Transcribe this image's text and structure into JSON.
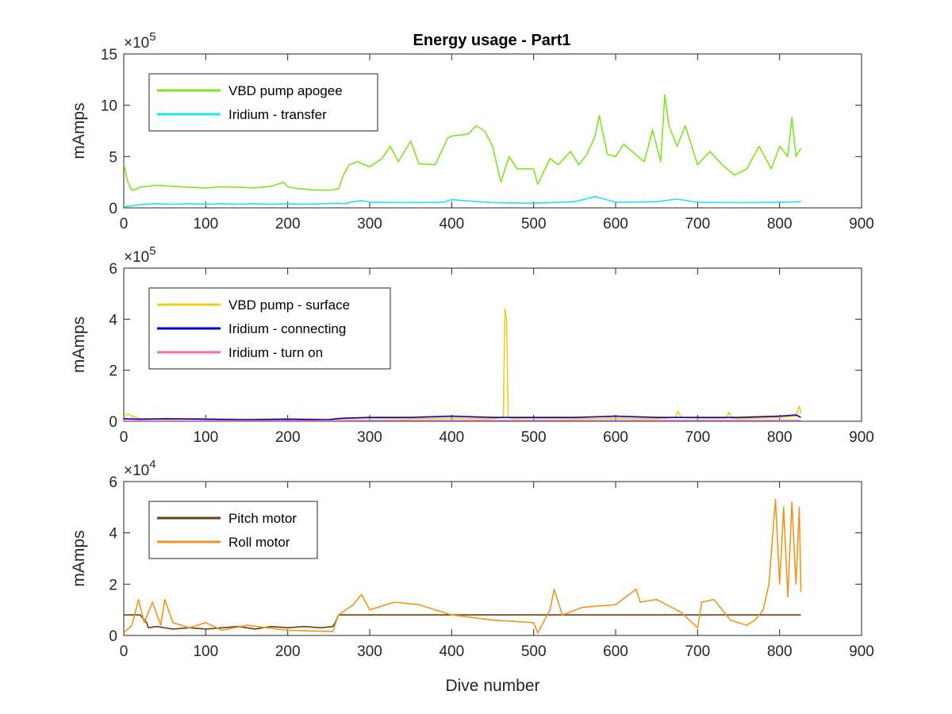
{
  "figure": {
    "title": "Energy usage - Part1"
  },
  "chart_data": [
    {
      "type": "line",
      "title": "Energy usage - Part1",
      "xlabel": "",
      "ylabel": "mAmps",
      "xlim": [
        0,
        900
      ],
      "ylim": [
        0,
        1500000
      ],
      "xticks": [
        "0",
        "100",
        "200",
        "300",
        "400",
        "500",
        "600",
        "700",
        "800",
        "900"
      ],
      "yticks": [
        "0",
        "5",
        "10",
        "15"
      ],
      "exponent_label": "× 10^5",
      "exponent_base": "×10",
      "exponent_power": "5",
      "grid": false,
      "legend_position": "top-left",
      "series": [
        {
          "name": "VBD pump apogee",
          "color": "#7fe51e",
          "x": [
            0,
            5,
            10,
            20,
            40,
            60,
            80,
            100,
            120,
            140,
            160,
            180,
            195,
            200,
            210,
            230,
            250,
            262,
            268,
            275,
            285,
            300,
            315,
            325,
            335,
            350,
            360,
            380,
            395,
            400,
            420,
            430,
            440,
            450,
            460,
            470,
            480,
            500,
            505,
            520,
            530,
            545,
            555,
            565,
            575,
            580,
            590,
            600,
            610,
            620,
            635,
            645,
            655,
            660,
            665,
            675,
            685,
            700,
            715,
            730,
            745,
            760,
            775,
            790,
            800,
            810,
            815,
            820,
            826
          ],
          "y": [
            430000,
            250000,
            170000,
            200000,
            220000,
            210000,
            200000,
            195000,
            205000,
            200000,
            195000,
            210000,
            250000,
            205000,
            190000,
            175000,
            170000,
            185000,
            320000,
            420000,
            450000,
            400000,
            480000,
            600000,
            450000,
            650000,
            430000,
            420000,
            680000,
            700000,
            720000,
            800000,
            750000,
            600000,
            250000,
            500000,
            380000,
            380000,
            230000,
            480000,
            420000,
            550000,
            420000,
            520000,
            700000,
            900000,
            520000,
            500000,
            620000,
            550000,
            450000,
            760000,
            450000,
            1100000,
            800000,
            600000,
            800000,
            420000,
            550000,
            420000,
            320000,
            380000,
            600000,
            380000,
            600000,
            500000,
            880000,
            500000,
            580000
          ]
        },
        {
          "name": "Iridium - transfer",
          "color": "#1ee5f0",
          "x": [
            0,
            10,
            20,
            40,
            60,
            80,
            100,
            120,
            140,
            160,
            180,
            200,
            220,
            240,
            262,
            270,
            280,
            290,
            300,
            350,
            390,
            400,
            450,
            500,
            550,
            575,
            600,
            650,
            675,
            700,
            750,
            800,
            826
          ],
          "y": [
            10000,
            20000,
            30000,
            40000,
            35000,
            40000,
            35000,
            40000,
            35000,
            40000,
            35000,
            40000,
            35000,
            40000,
            45000,
            40000,
            60000,
            70000,
            55000,
            50000,
            55000,
            80000,
            50000,
            45000,
            60000,
            110000,
            55000,
            60000,
            85000,
            55000,
            50000,
            55000,
            60000
          ]
        }
      ]
    },
    {
      "type": "line",
      "title": "",
      "xlabel": "",
      "ylabel": "mAmps",
      "xlim": [
        0,
        900
      ],
      "ylim": [
        0,
        600000
      ],
      "xticks": [
        "0",
        "100",
        "200",
        "300",
        "400",
        "500",
        "600",
        "700",
        "800",
        "900"
      ],
      "yticks": [
        "0",
        "2",
        "4",
        "6"
      ],
      "exponent_label": "× 10^5",
      "exponent_base": "×10",
      "exponent_power": "5",
      "grid": false,
      "legend_position": "top-left",
      "series": [
        {
          "name": "VBD pump - surface",
          "color": "#f0cc1e",
          "x": [
            0,
            5,
            10,
            20,
            50,
            100,
            150,
            200,
            250,
            300,
            350,
            400,
            450,
            463,
            465,
            467,
            469,
            475,
            500,
            550,
            600,
            650,
            673,
            676,
            680,
            700,
            735,
            738,
            742,
            750,
            800,
            820,
            824,
            826
          ],
          "y": [
            15000,
            30000,
            20000,
            10000,
            8000,
            10000,
            8000,
            10000,
            8000,
            12000,
            10000,
            12000,
            10000,
            15000,
            440000,
            400000,
            15000,
            10000,
            12000,
            10000,
            12000,
            10000,
            15000,
            40000,
            15000,
            12000,
            12000,
            35000,
            12000,
            10000,
            15000,
            20000,
            60000,
            30000
          ]
        },
        {
          "name": "Iridium - connecting",
          "color": "#0000cc",
          "x": [
            0,
            20,
            50,
            100,
            150,
            200,
            250,
            260,
            270,
            300,
            350,
            400,
            450,
            500,
            550,
            600,
            650,
            700,
            750,
            800,
            820,
            826
          ],
          "y": [
            10000,
            8000,
            10000,
            8000,
            6000,
            8000,
            6000,
            10000,
            12000,
            15000,
            15000,
            20000,
            15000,
            15000,
            15000,
            20000,
            15000,
            15000,
            15000,
            20000,
            25000,
            15000
          ]
        },
        {
          "name": "Iridium - turn on",
          "color": "#f06eb4",
          "x": [
            0,
            100,
            200,
            300,
            400,
            500,
            600,
            700,
            800,
            826
          ],
          "y": [
            2000,
            2000,
            2000,
            3000,
            3000,
            3000,
            3000,
            3000,
            3000,
            3000
          ]
        }
      ]
    },
    {
      "type": "line",
      "title": "",
      "xlabel": "Dive number",
      "ylabel": "mAmps",
      "xlim": [
        0,
        900
      ],
      "ylim": [
        0,
        60000
      ],
      "xticks": [
        "0",
        "100",
        "200",
        "300",
        "400",
        "500",
        "600",
        "700",
        "800",
        "900"
      ],
      "yticks": [
        "0",
        "2",
        "4",
        "6"
      ],
      "exponent_label": "× 10^4",
      "exponent_base": "×10",
      "exponent_power": "4",
      "grid": false,
      "legend_position": "top-left",
      "series": [
        {
          "name": "Pitch motor",
          "color": "#703c0e",
          "x": [
            0,
            20,
            28,
            30,
            40,
            60,
            80,
            100,
            120,
            140,
            160,
            180,
            200,
            220,
            240,
            255,
            258,
            262,
            300,
            400,
            500,
            600,
            700,
            800,
            826
          ],
          "y": [
            8000,
            8000,
            5000,
            3000,
            3500,
            2500,
            3000,
            2500,
            3000,
            3500,
            2500,
            3500,
            3000,
            3500,
            3000,
            3500,
            5000,
            8000,
            8000,
            8000,
            8000,
            8000,
            8000,
            8000,
            8000
          ]
        },
        {
          "name": "Roll motor",
          "color": "#f0961e",
          "x": [
            0,
            10,
            18,
            25,
            35,
            45,
            50,
            60,
            80,
            100,
            120,
            150,
            200,
            255,
            262,
            280,
            290,
            300,
            330,
            360,
            400,
            450,
            500,
            505,
            520,
            525,
            535,
            560,
            600,
            625,
            630,
            650,
            680,
            700,
            705,
            720,
            740,
            760,
            770,
            780,
            787,
            795,
            800,
            805,
            810,
            815,
            820,
            824,
            826
          ],
          "y": [
            1000,
            4000,
            14000,
            5000,
            13000,
            4000,
            14000,
            5000,
            3000,
            5000,
            2000,
            4000,
            2000,
            1500,
            8000,
            12000,
            16000,
            10000,
            13000,
            12000,
            8000,
            6000,
            5000,
            1000,
            10000,
            18000,
            8000,
            11000,
            12000,
            18000,
            13000,
            14000,
            9000,
            3000,
            13000,
            14000,
            6000,
            4000,
            6000,
            10000,
            20000,
            53000,
            20000,
            50000,
            15000,
            52000,
            20000,
            50000,
            17000
          ]
        }
      ]
    }
  ]
}
